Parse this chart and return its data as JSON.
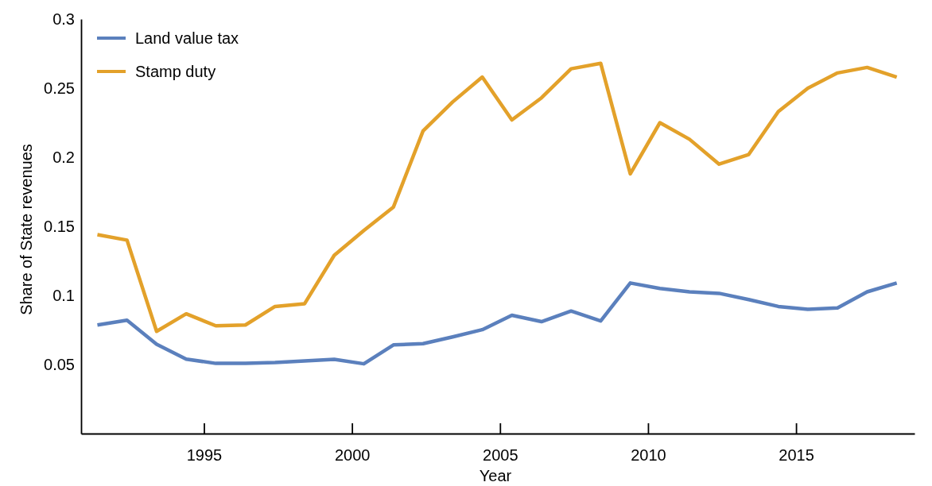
{
  "chart_data": {
    "type": "line",
    "xlabel": "Year",
    "ylabel": "Share of State revenues",
    "x": [
      1991.4,
      1992.4,
      1993.4,
      1994.4,
      1995.4,
      1996.4,
      1997.4,
      1998.4,
      1999.4,
      2000.4,
      2001.4,
      2002.4,
      2003.4,
      2004.4,
      2005.4,
      2006.4,
      2007.4,
      2008.4,
      2009.4,
      2010.4,
      2011.4,
      2012.4,
      2013.4,
      2014.4,
      2015.4,
      2016.4,
      2017.4,
      2018.4
    ],
    "series": [
      {
        "name": "Land value tax",
        "color": "#5b80bd",
        "values": [
          0.0786,
          0.082,
          0.0647,
          0.0539,
          0.0508,
          0.0508,
          0.0514,
          0.0526,
          0.0537,
          0.0505,
          0.0642,
          0.0651,
          0.07,
          0.0752,
          0.0856,
          0.081,
          0.0887,
          0.0815,
          0.109,
          0.105,
          0.1026,
          0.1015,
          0.097,
          0.092,
          0.09,
          0.091,
          0.1026,
          0.109
        ]
      },
      {
        "name": "Stamp duty",
        "color": "#e3a12a",
        "values": [
          0.144,
          0.14,
          0.074,
          0.0867,
          0.078,
          0.0786,
          0.092,
          0.094,
          0.129,
          0.147,
          0.164,
          0.219,
          0.24,
          0.258,
          0.227,
          0.243,
          0.264,
          0.268,
          0.188,
          0.225,
          0.213,
          0.195,
          0.202,
          0.233,
          0.25,
          0.261,
          0.265,
          0.258
        ]
      }
    ],
    "xlim": [
      1990.85,
      2019
    ],
    "xticks": [
      1995,
      2000,
      2005,
      2010,
      2015
    ],
    "ylim": [
      0,
      0.3
    ],
    "yticks": [
      0.05,
      0.1,
      0.15,
      0.2,
      0.25,
      0.3
    ],
    "legend": "top left",
    "grid": false,
    "marker": "none",
    "line_style": "solid"
  }
}
